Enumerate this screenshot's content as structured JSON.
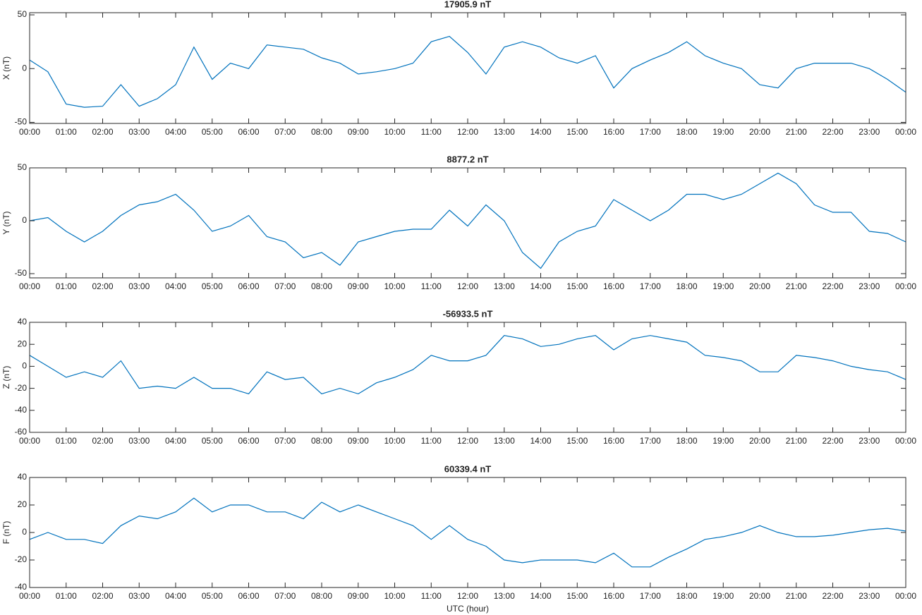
{
  "chart_data": [
    {
      "type": "line",
      "title": "17905.9 nT",
      "y_label": "X (nT)",
      "color": "#0072bd",
      "x": [
        0,
        0.5,
        1,
        1.5,
        2,
        2.5,
        3,
        3.5,
        4,
        4.5,
        5,
        5.5,
        6,
        6.5,
        7,
        7.5,
        8,
        8.5,
        9,
        9.5,
        10,
        10.5,
        11,
        11.5,
        12,
        12.5,
        13,
        13.5,
        14,
        14.5,
        15,
        15.5,
        16,
        16.5,
        17,
        17.5,
        18,
        18.5,
        19,
        19.5,
        20,
        20.5,
        21,
        21.5,
        22,
        22.5,
        23,
        23.5,
        24
      ],
      "values": [
        8,
        -3,
        -33,
        -36,
        -35,
        -15,
        -35,
        -28,
        -15,
        20,
        -10,
        5,
        0,
        22,
        20,
        18,
        10,
        5,
        -5,
        -3,
        0,
        5,
        25,
        30,
        15,
        -5,
        20,
        25,
        20,
        10,
        5,
        12,
        -18,
        0,
        8,
        15,
        25,
        12,
        5,
        0,
        -15,
        -18,
        0,
        5,
        5,
        5,
        0,
        -10,
        -22
      ],
      "xlim": [
        0,
        24
      ],
      "ylim": [
        -51,
        52
      ],
      "yticks": [
        -50,
        0,
        50
      ],
      "xticks": [
        {
          "value": 0,
          "label": "00:00"
        },
        {
          "value": 1,
          "label": "01:00"
        },
        {
          "value": 2,
          "label": "02:00"
        },
        {
          "value": 3,
          "label": "03:00"
        },
        {
          "value": 4,
          "label": "04:00"
        },
        {
          "value": 5,
          "label": "05:00"
        },
        {
          "value": 6,
          "label": "06:00"
        },
        {
          "value": 7,
          "label": "07:00"
        },
        {
          "value": 8,
          "label": "08:00"
        },
        {
          "value": 9,
          "label": "09:00"
        },
        {
          "value": 10,
          "label": "10:00"
        },
        {
          "value": 11,
          "label": "11:00"
        },
        {
          "value": 12,
          "label": "12:00"
        },
        {
          "value": 13,
          "label": "13:00"
        },
        {
          "value": 14,
          "label": "14:00"
        },
        {
          "value": 15,
          "label": "15:00"
        },
        {
          "value": 16,
          "label": "16:00"
        },
        {
          "value": 17,
          "label": "17:00"
        },
        {
          "value": 18,
          "label": "18:00"
        },
        {
          "value": 19,
          "label": "19:00"
        },
        {
          "value": 20,
          "label": "20:00"
        },
        {
          "value": 21,
          "label": "21:00"
        },
        {
          "value": 22,
          "label": "22:00"
        },
        {
          "value": 23,
          "label": "23:00"
        },
        {
          "value": 24,
          "label": "00:00"
        }
      ]
    },
    {
      "type": "line",
      "title": "8877.2 nT",
      "y_label": "Y (nT)",
      "color": "#0072bd",
      "x": [
        0,
        0.5,
        1,
        1.5,
        2,
        2.5,
        3,
        3.5,
        4,
        4.5,
        5,
        5.5,
        6,
        6.5,
        7,
        7.5,
        8,
        8.5,
        9,
        9.5,
        10,
        10.5,
        11,
        11.5,
        12,
        12.5,
        13,
        13.5,
        14,
        14.5,
        15,
        15.5,
        16,
        16.5,
        17,
        17.5,
        18,
        18.5,
        19,
        19.5,
        20,
        20.5,
        21,
        21.5,
        22,
        22.5,
        23,
        23.5,
        24
      ],
      "values": [
        0,
        3,
        -10,
        -20,
        -10,
        5,
        15,
        18,
        25,
        10,
        -10,
        -5,
        5,
        -15,
        -20,
        -35,
        -30,
        -42,
        -20,
        -15,
        -10,
        -8,
        -8,
        10,
        -5,
        15,
        0,
        -30,
        -45,
        -20,
        -10,
        -5,
        20,
        10,
        0,
        10,
        25,
        25,
        20,
        25,
        35,
        45,
        35,
        15,
        8,
        8,
        -10,
        -12,
        -20
      ],
      "xlim": [
        0,
        24
      ],
      "ylim": [
        -54,
        50
      ],
      "yticks": [
        -50,
        0,
        50
      ],
      "xticks": [
        {
          "value": 0,
          "label": "00:00"
        },
        {
          "value": 1,
          "label": "01:00"
        },
        {
          "value": 2,
          "label": "02:00"
        },
        {
          "value": 3,
          "label": "03:00"
        },
        {
          "value": 4,
          "label": "04:00"
        },
        {
          "value": 5,
          "label": "05:00"
        },
        {
          "value": 6,
          "label": "06:00"
        },
        {
          "value": 7,
          "label": "07:00"
        },
        {
          "value": 8,
          "label": "08:00"
        },
        {
          "value": 9,
          "label": "09:00"
        },
        {
          "value": 10,
          "label": "10:00"
        },
        {
          "value": 11,
          "label": "11:00"
        },
        {
          "value": 12,
          "label": "12:00"
        },
        {
          "value": 13,
          "label": "13:00"
        },
        {
          "value": 14,
          "label": "14:00"
        },
        {
          "value": 15,
          "label": "15:00"
        },
        {
          "value": 16,
          "label": "16:00"
        },
        {
          "value": 17,
          "label": "17:00"
        },
        {
          "value": 18,
          "label": "18:00"
        },
        {
          "value": 19,
          "label": "19:00"
        },
        {
          "value": 20,
          "label": "20:00"
        },
        {
          "value": 21,
          "label": "21:00"
        },
        {
          "value": 22,
          "label": "22:00"
        },
        {
          "value": 23,
          "label": "23:00"
        },
        {
          "value": 24,
          "label": "00:00"
        }
      ]
    },
    {
      "type": "line",
      "title": "-56933.5 nT",
      "y_label": "Z (nT)",
      "color": "#0072bd",
      "x": [
        0,
        0.5,
        1,
        1.5,
        2,
        2.5,
        3,
        3.5,
        4,
        4.5,
        5,
        5.5,
        6,
        6.5,
        7,
        7.5,
        8,
        8.5,
        9,
        9.5,
        10,
        10.5,
        11,
        11.5,
        12,
        12.5,
        13,
        13.5,
        14,
        14.5,
        15,
        15.5,
        16,
        16.5,
        17,
        17.5,
        18,
        18.5,
        19,
        19.5,
        20,
        20.5,
        21,
        21.5,
        22,
        22.5,
        23,
        23.5,
        24
      ],
      "values": [
        10,
        0,
        -10,
        -5,
        -10,
        5,
        -20,
        -18,
        -20,
        -10,
        -20,
        -20,
        -25,
        -5,
        -12,
        -10,
        -25,
        -20,
        -25,
        -15,
        -10,
        -3,
        10,
        5,
        5,
        10,
        28,
        25,
        18,
        20,
        25,
        28,
        15,
        25,
        28,
        25,
        22,
        10,
        8,
        5,
        -5,
        -5,
        10,
        8,
        5,
        0,
        -3,
        -5,
        -12
      ],
      "xlim": [
        0,
        24
      ],
      "ylim": [
        -60,
        40
      ],
      "yticks": [
        -60,
        -40,
        -20,
        0,
        20,
        40
      ],
      "xticks": [
        {
          "value": 0,
          "label": "00:00"
        },
        {
          "value": 1,
          "label": "01:00"
        },
        {
          "value": 2,
          "label": "02:00"
        },
        {
          "value": 3,
          "label": "03:00"
        },
        {
          "value": 4,
          "label": "04:00"
        },
        {
          "value": 5,
          "label": "05:00"
        },
        {
          "value": 6,
          "label": "06:00"
        },
        {
          "value": 7,
          "label": "07:00"
        },
        {
          "value": 8,
          "label": "08:00"
        },
        {
          "value": 9,
          "label": "09:00"
        },
        {
          "value": 10,
          "label": "10:00"
        },
        {
          "value": 11,
          "label": "11:00"
        },
        {
          "value": 12,
          "label": "12:00"
        },
        {
          "value": 13,
          "label": "13:00"
        },
        {
          "value": 14,
          "label": "14:00"
        },
        {
          "value": 15,
          "label": "15:00"
        },
        {
          "value": 16,
          "label": "16:00"
        },
        {
          "value": 17,
          "label": "17:00"
        },
        {
          "value": 18,
          "label": "18:00"
        },
        {
          "value": 19,
          "label": "19:00"
        },
        {
          "value": 20,
          "label": "20:00"
        },
        {
          "value": 21,
          "label": "21:00"
        },
        {
          "value": 22,
          "label": "22:00"
        },
        {
          "value": 23,
          "label": "23:00"
        },
        {
          "value": 24,
          "label": "00:00"
        }
      ]
    },
    {
      "type": "line",
      "title": "60339.4 nT",
      "y_label": "F (nT)",
      "x_label": "UTC (hour)",
      "color": "#0072bd",
      "x": [
        0,
        0.5,
        1,
        1.5,
        2,
        2.5,
        3,
        3.5,
        4,
        4.5,
        5,
        5.5,
        6,
        6.5,
        7,
        7.5,
        8,
        8.5,
        9,
        9.5,
        10,
        10.5,
        11,
        11.5,
        12,
        12.5,
        13,
        13.5,
        14,
        14.5,
        15,
        15.5,
        16,
        16.5,
        17,
        17.5,
        18,
        18.5,
        19,
        19.5,
        20,
        20.5,
        21,
        21.5,
        22,
        22.5,
        23,
        23.5,
        24
      ],
      "values": [
        -5,
        0,
        -5,
        -5,
        -8,
        5,
        12,
        10,
        15,
        25,
        15,
        20,
        20,
        15,
        15,
        10,
        22,
        15,
        20,
        15,
        10,
        5,
        -5,
        5,
        -5,
        -10,
        -20,
        -22,
        -20,
        -20,
        -20,
        -22,
        -15,
        -25,
        -25,
        -18,
        -12,
        -5,
        -3,
        0,
        5,
        0,
        -3,
        -3,
        -2,
        0,
        2,
        3,
        1
      ],
      "xlim": [
        0,
        24
      ],
      "ylim": [
        -40,
        40
      ],
      "yticks": [
        -40,
        -20,
        0,
        20,
        40
      ],
      "xticks": [
        {
          "value": 0,
          "label": "00:00"
        },
        {
          "value": 1,
          "label": "01:00"
        },
        {
          "value": 2,
          "label": "02:00"
        },
        {
          "value": 3,
          "label": "03:00"
        },
        {
          "value": 4,
          "label": "04:00"
        },
        {
          "value": 5,
          "label": "05:00"
        },
        {
          "value": 6,
          "label": "06:00"
        },
        {
          "value": 7,
          "label": "07:00"
        },
        {
          "value": 8,
          "label": "08:00"
        },
        {
          "value": 9,
          "label": "09:00"
        },
        {
          "value": 10,
          "label": "10:00"
        },
        {
          "value": 11,
          "label": "11:00"
        },
        {
          "value": 12,
          "label": "12:00"
        },
        {
          "value": 13,
          "label": "13:00"
        },
        {
          "value": 14,
          "label": "14:00"
        },
        {
          "value": 15,
          "label": "15:00"
        },
        {
          "value": 16,
          "label": "16:00"
        },
        {
          "value": 17,
          "label": "17:00"
        },
        {
          "value": 18,
          "label": "18:00"
        },
        {
          "value": 19,
          "label": "19:00"
        },
        {
          "value": 20,
          "label": "20:00"
        },
        {
          "value": 21,
          "label": "21:00"
        },
        {
          "value": 22,
          "label": "22:00"
        },
        {
          "value": 23,
          "label": "23:00"
        },
        {
          "value": 24,
          "label": "00:00"
        }
      ]
    }
  ]
}
